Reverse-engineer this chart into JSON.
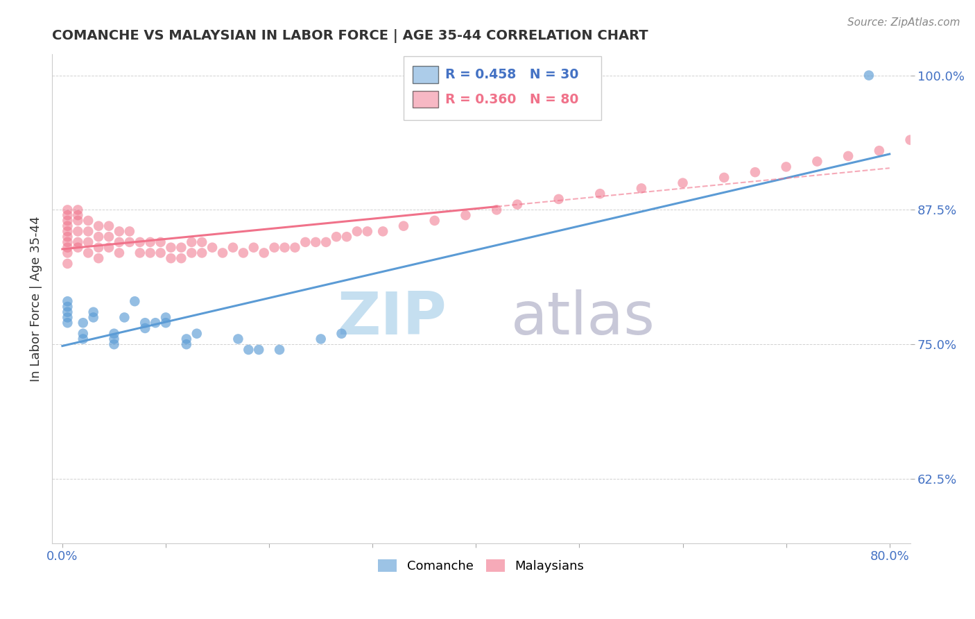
{
  "title": "COMANCHE VS MALAYSIAN IN LABOR FORCE | AGE 35-44 CORRELATION CHART",
  "source_text": "Source: ZipAtlas.com",
  "ylabel": "In Labor Force | Age 35-44",
  "xlim": [
    -0.01,
    0.82
  ],
  "ylim": [
    0.565,
    1.02
  ],
  "xticks": [
    0.0,
    0.1,
    0.2,
    0.3,
    0.4,
    0.5,
    0.6,
    0.7,
    0.8
  ],
  "xticklabels": [
    "0.0%",
    "",
    "",
    "",
    "",
    "",
    "",
    "",
    "80.0%"
  ],
  "ytick_positions": [
    0.625,
    0.75,
    0.875,
    1.0
  ],
  "yticklabels": [
    "62.5%",
    "75.0%",
    "87.5%",
    "100.0%"
  ],
  "comanche_color": "#5b9bd5",
  "malaysian_color": "#f0728a",
  "watermark_zip_color": "#c5dff0",
  "watermark_atlas_color": "#c8c8d8",
  "comanche_x": [
    0.005,
    0.005,
    0.005,
    0.005,
    0.005,
    0.02,
    0.02,
    0.02,
    0.03,
    0.03,
    0.05,
    0.05,
    0.05,
    0.06,
    0.07,
    0.08,
    0.08,
    0.09,
    0.1,
    0.1,
    0.12,
    0.12,
    0.13,
    0.17,
    0.18,
    0.19,
    0.21,
    0.25,
    0.27,
    0.78
  ],
  "comanche_y": [
    0.79,
    0.785,
    0.78,
    0.775,
    0.77,
    0.77,
    0.76,
    0.755,
    0.78,
    0.775,
    0.76,
    0.755,
    0.75,
    0.775,
    0.79,
    0.77,
    0.765,
    0.77,
    0.775,
    0.77,
    0.755,
    0.75,
    0.76,
    0.755,
    0.745,
    0.745,
    0.745,
    0.755,
    0.76,
    1.0
  ],
  "malaysian_x": [
    0.005,
    0.005,
    0.005,
    0.005,
    0.005,
    0.005,
    0.005,
    0.005,
    0.005,
    0.005,
    0.015,
    0.015,
    0.015,
    0.015,
    0.015,
    0.015,
    0.025,
    0.025,
    0.025,
    0.025,
    0.035,
    0.035,
    0.035,
    0.035,
    0.045,
    0.045,
    0.045,
    0.055,
    0.055,
    0.055,
    0.065,
    0.065,
    0.075,
    0.075,
    0.085,
    0.085,
    0.095,
    0.095,
    0.105,
    0.105,
    0.115,
    0.115,
    0.125,
    0.125,
    0.135,
    0.135,
    0.145,
    0.155,
    0.165,
    0.175,
    0.185,
    0.195,
    0.205,
    0.215,
    0.225,
    0.235,
    0.245,
    0.255,
    0.265,
    0.275,
    0.285,
    0.295,
    0.31,
    0.33,
    0.36,
    0.39,
    0.42,
    0.44,
    0.48,
    0.52,
    0.56,
    0.6,
    0.64,
    0.67,
    0.7,
    0.73,
    0.76,
    0.79,
    0.82
  ],
  "malaysian_y": [
    0.875,
    0.87,
    0.865,
    0.86,
    0.855,
    0.85,
    0.845,
    0.84,
    0.835,
    0.825,
    0.875,
    0.87,
    0.865,
    0.855,
    0.845,
    0.84,
    0.865,
    0.855,
    0.845,
    0.835,
    0.86,
    0.85,
    0.84,
    0.83,
    0.86,
    0.85,
    0.84,
    0.855,
    0.845,
    0.835,
    0.855,
    0.845,
    0.845,
    0.835,
    0.845,
    0.835,
    0.845,
    0.835,
    0.84,
    0.83,
    0.84,
    0.83,
    0.845,
    0.835,
    0.845,
    0.835,
    0.84,
    0.835,
    0.84,
    0.835,
    0.84,
    0.835,
    0.84,
    0.84,
    0.84,
    0.845,
    0.845,
    0.845,
    0.85,
    0.85,
    0.855,
    0.855,
    0.855,
    0.86,
    0.865,
    0.87,
    0.875,
    0.88,
    0.885,
    0.89,
    0.895,
    0.9,
    0.905,
    0.91,
    0.915,
    0.92,
    0.925,
    0.93,
    0.94
  ]
}
